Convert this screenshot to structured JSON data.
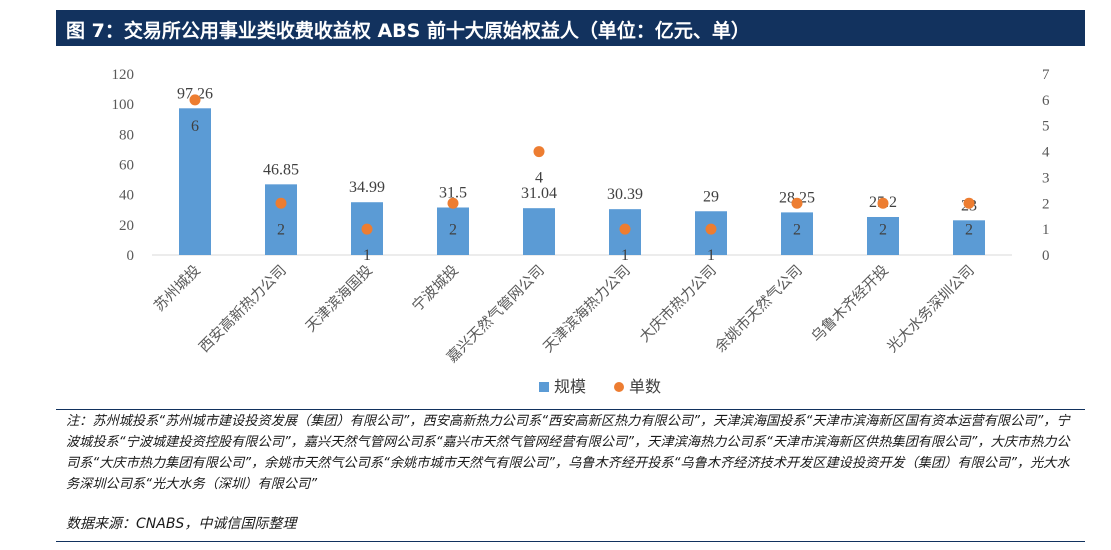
{
  "title": "图 7：交易所公用事业类收费收益权 ABS 前十大原始权益人（单位：亿元、单）",
  "note": "注：苏州城投系“苏州城市建设投资发展（集团）有限公司”，西安高新热力公司系“西安高新区热力有限公司”，天津滨海国投系“天津市滨海新区国有资本运营有限公司”，宁波城投系“宁波城建投资控股有限公司”，嘉兴天然气管网公司系“嘉兴市天然气管网经营有限公司”，天津滨海热力公司系“天津市滨海新区供热集团有限公司”，大庆市热力公司系“大庆市热力集团有限公司”，余姚市天然气公司系“余姚市城市天然气有限公司”，乌鲁木齐经开投系“乌鲁木齐经济技术开发区建设投资开发（集团）有限公司”，光大水务深圳公司系“光大水务（深圳）有限公司”",
  "source": "数据来源：CNABS，中诚信国际整理",
  "chart_data": {
    "type": "bar",
    "categories": [
      "苏州城投",
      "西安高新热力公司",
      "天津滨海国投",
      "宁波城投",
      "嘉兴天然气管网公司",
      "天津滨海热力公司",
      "大庆市热力公司",
      "余姚市天然气公司",
      "乌鲁木齐经开投",
      "光大水务深圳公司"
    ],
    "series": [
      {
        "name": "规模",
        "kind": "bar",
        "axis": "left",
        "color": "#5b9bd5",
        "values": [
          97.26,
          46.85,
          34.99,
          31.5,
          31.04,
          30.39,
          29,
          28.25,
          25.2,
          23
        ],
        "labels": [
          "97.26",
          "46.85",
          "34.99",
          "31.5",
          "31.04",
          "30.39",
          "29",
          "28.25",
          "25.2",
          "23"
        ]
      },
      {
        "name": "单数",
        "kind": "scatter",
        "axis": "right",
        "color": "#ed7d31",
        "values": [
          6,
          2,
          1,
          2,
          4,
          1,
          1,
          2,
          2,
          2
        ],
        "labels": [
          "6",
          "2",
          "1",
          "2",
          "4",
          "1",
          "1",
          "2",
          "2",
          "2"
        ]
      }
    ],
    "y_left": {
      "min": 0,
      "max": 120,
      "ticks": [
        "0",
        "20",
        "40",
        "60",
        "80",
        "100",
        "120"
      ]
    },
    "y_right": {
      "min": 0,
      "max": 7,
      "ticks": [
        "0",
        "1",
        "2",
        "3",
        "4",
        "5",
        "6",
        "7"
      ]
    },
    "grid": false,
    "legend": "bottom"
  }
}
